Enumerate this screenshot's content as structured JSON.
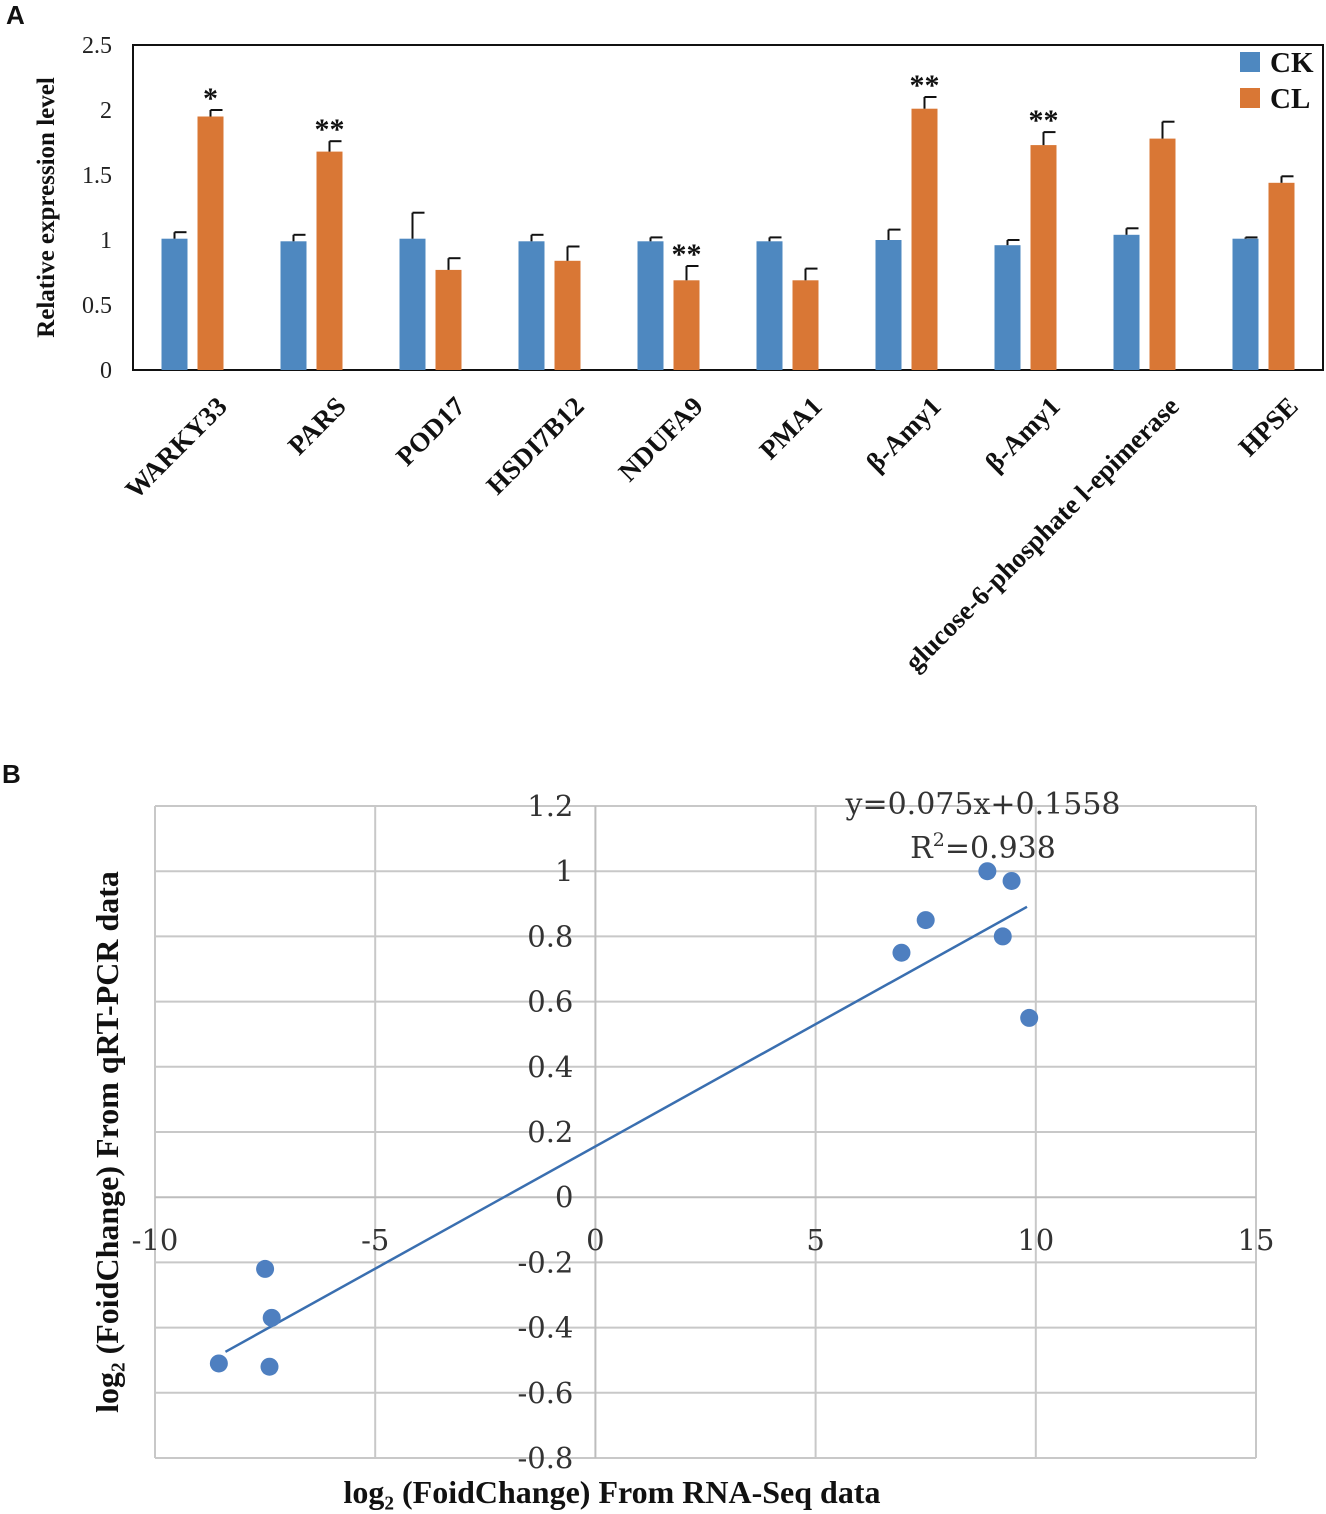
{
  "panel_labels": [
    "A",
    "B"
  ],
  "chart_data": [
    {
      "type": "bar",
      "panel": "A",
      "title": "",
      "ylabel": "Relative expression level",
      "xlabel": "",
      "ylim": [
        0,
        2.5
      ],
      "yticks": [
        0,
        0.5,
        1,
        1.5,
        2,
        2.5
      ],
      "ytick_labels": [
        "0",
        "0.5",
        "1",
        "1.5",
        "2",
        "2.5"
      ],
      "legend_position": "top-right",
      "categories": [
        "WARKY33",
        "PARS",
        "POD17",
        "HSDI7B12",
        "NDUFA9",
        "PMA1",
        "β-Amy1",
        "β-Amy1",
        "glucose-6-phosphate l-epimerase",
        "HPSE"
      ],
      "series": [
        {
          "name": "CK",
          "color": "#4e88c0",
          "values": [
            1.01,
            0.99,
            1.01,
            0.99,
            0.99,
            0.99,
            1.0,
            0.96,
            1.04,
            1.01
          ],
          "errors": [
            0.05,
            0.05,
            0.2,
            0.05,
            0.03,
            0.03,
            0.08,
            0.04,
            0.05,
            0.01
          ]
        },
        {
          "name": "CL",
          "color": "#d97735",
          "values": [
            1.95,
            1.68,
            0.77,
            0.84,
            0.69,
            0.69,
            2.01,
            1.73,
            1.78,
            1.44
          ],
          "errors": [
            0.05,
            0.08,
            0.09,
            0.11,
            0.11,
            0.09,
            0.09,
            0.1,
            0.13,
            0.05
          ]
        }
      ],
      "annotations": [
        {
          "category_index": 0,
          "series": "CL",
          "text": "*"
        },
        {
          "category_index": 1,
          "series": "CL",
          "text": "**"
        },
        {
          "category_index": 4,
          "series": "CL",
          "text": "**"
        },
        {
          "category_index": 6,
          "series": "CL",
          "text": "**"
        },
        {
          "category_index": 7,
          "series": "CL",
          "text": "**"
        }
      ]
    },
    {
      "type": "scatter",
      "panel": "B",
      "title": "",
      "xlabel": "log₂  (FoidChange) From RNA-Seq data",
      "ylabel": "log₂  (FoidChange) From qRT-PCR data",
      "xlim": [
        -10,
        15
      ],
      "ylim": [
        -0.8,
        1.2
      ],
      "xticks": [
        -10,
        -5,
        0,
        5,
        10,
        15
      ],
      "xtick_labels": [
        "-10",
        "-5",
        "0",
        "5",
        "10",
        "15"
      ],
      "yticks": [
        -0.8,
        -0.6,
        -0.4,
        -0.2,
        0,
        0.2,
        0.4,
        0.6,
        0.8,
        1,
        1.2
      ],
      "ytick_labels": [
        "-0.8",
        "-0.6",
        "-0.4",
        "-0.2",
        "0",
        "0.2",
        "0.4",
        "0.6",
        "0.8",
        "1",
        "1.2"
      ],
      "grid": true,
      "point_color": "#4e7fc0",
      "points": [
        {
          "x": 8.9,
          "y": 1.0
        },
        {
          "x": 9.45,
          "y": 0.97
        },
        {
          "x": 7.5,
          "y": 0.85
        },
        {
          "x": 9.25,
          "y": 0.8
        },
        {
          "x": 6.95,
          "y": 0.75
        },
        {
          "x": 9.85,
          "y": 0.55
        },
        {
          "x": -7.5,
          "y": -0.22
        },
        {
          "x": -7.35,
          "y": -0.37
        },
        {
          "x": -8.55,
          "y": -0.51
        },
        {
          "x": -7.4,
          "y": -0.52
        }
      ],
      "trendline": {
        "slope": 0.075,
        "intercept": 0.1558,
        "x_range": [
          -8.4,
          9.8
        ],
        "color": "#3a6fb0",
        "equation_text": "y=0.075x+0.1558",
        "r2_prefix": "R",
        "r2_sup": "2",
        "r2_suffix": "=0.938"
      }
    }
  ]
}
